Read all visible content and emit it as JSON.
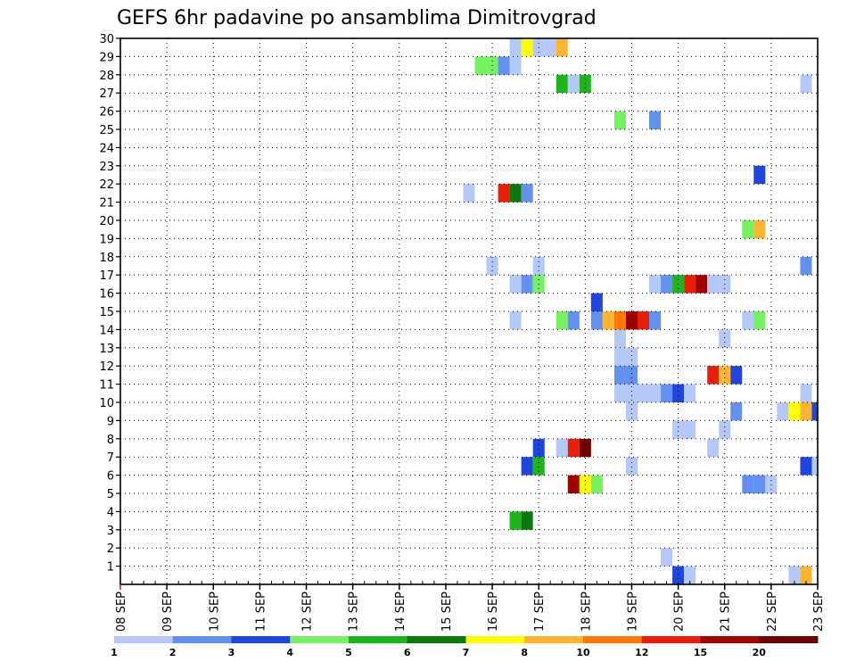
{
  "chart_data": {
    "type": "heatmap",
    "title": "GEFS 6hr padavine po ansamblima Dimitrovgrad",
    "y_ticks": [
      "1",
      "2",
      "3",
      "4",
      "5",
      "6",
      "7",
      "8",
      "9",
      "10",
      "11",
      "12",
      "13",
      "14",
      "15",
      "16",
      "17",
      "18",
      "19",
      "20",
      "21",
      "22",
      "23",
      "24",
      "25",
      "26",
      "27",
      "28",
      "29",
      "30"
    ],
    "x_tick_labels": [
      "08 SEP",
      "09 SEP",
      "10 SEP",
      "11 SEP",
      "12 SEP",
      "13 SEP",
      "14 SEP",
      "15 SEP",
      "16 SEP",
      "17 SEP",
      "18 SEP",
      "19 SEP",
      "20 SEP",
      "21 SEP",
      "22 SEP",
      "23 SEP"
    ],
    "x_range": [
      0,
      60
    ],
    "y_range": [
      0,
      30
    ],
    "grid": true,
    "legend": {
      "position": "bottom",
      "colors": [
        "#b4c8fa",
        "#6490f0",
        "#1e46dc",
        "#78f064",
        "#1eb41e",
        "#0a780a",
        "#ffff00",
        "#ffb432",
        "#ff7800",
        "#e61e0a",
        "#a00000",
        "#6e0000"
      ],
      "labels": [
        "1",
        "2",
        "3",
        "4",
        "5",
        "6",
        "7",
        "8",
        "10",
        "12",
        "15",
        "20"
      ]
    },
    "cells": [
      [
        34,
        29,
        0
      ],
      [
        35,
        29,
        6
      ],
      [
        36,
        29,
        0
      ],
      [
        37,
        29,
        0
      ],
      [
        38,
        29,
        7
      ],
      [
        31,
        28,
        3
      ],
      [
        32,
        28,
        3
      ],
      [
        33,
        28,
        1
      ],
      [
        34,
        28,
        0
      ],
      [
        38,
        27,
        4
      ],
      [
        39,
        27,
        0
      ],
      [
        40,
        27,
        4
      ],
      [
        59,
        27,
        0
      ],
      [
        43,
        25,
        3
      ],
      [
        46,
        25,
        1
      ],
      [
        55,
        22,
        2
      ],
      [
        30,
        21,
        0
      ],
      [
        33,
        21,
        9
      ],
      [
        34,
        21,
        5
      ],
      [
        35,
        21,
        1
      ],
      [
        54,
        19,
        3
      ],
      [
        55,
        19,
        7
      ],
      [
        32,
        17,
        0
      ],
      [
        36,
        17,
        0
      ],
      [
        59,
        17,
        1
      ],
      [
        34,
        16,
        0
      ],
      [
        35,
        16,
        1
      ],
      [
        36,
        16,
        3
      ],
      [
        46,
        16,
        0
      ],
      [
        47,
        16,
        1
      ],
      [
        48,
        16,
        4
      ],
      [
        49,
        16,
        9
      ],
      [
        50,
        16,
        10
      ],
      [
        51,
        16,
        0
      ],
      [
        52,
        16,
        0
      ],
      [
        41,
        15,
        2
      ],
      [
        34,
        14,
        0
      ],
      [
        38,
        14,
        3
      ],
      [
        39,
        14,
        1
      ],
      [
        41,
        14,
        1
      ],
      [
        42,
        14,
        7
      ],
      [
        43,
        14,
        8
      ],
      [
        44,
        14,
        10
      ],
      [
        45,
        14,
        9
      ],
      [
        46,
        14,
        1
      ],
      [
        54,
        14,
        0
      ],
      [
        55,
        14,
        3
      ],
      [
        43,
        13,
        0
      ],
      [
        52,
        13,
        0
      ],
      [
        43,
        12,
        0
      ],
      [
        44,
        12,
        0
      ],
      [
        43,
        11,
        1
      ],
      [
        44,
        11,
        1
      ],
      [
        51,
        11,
        9
      ],
      [
        52,
        11,
        7
      ],
      [
        53,
        11,
        2
      ],
      [
        43,
        10,
        0
      ],
      [
        44,
        10,
        0
      ],
      [
        45,
        10,
        0
      ],
      [
        46,
        10,
        0
      ],
      [
        47,
        10,
        1
      ],
      [
        48,
        10,
        2
      ],
      [
        49,
        10,
        0
      ],
      [
        59,
        10,
        0
      ],
      [
        44,
        9,
        0
      ],
      [
        53,
        9,
        1
      ],
      [
        57,
        9,
        0
      ],
      [
        58,
        9,
        6
      ],
      [
        59,
        9,
        7
      ],
      [
        60,
        9,
        2
      ],
      [
        48,
        8,
        0
      ],
      [
        49,
        8,
        0
      ],
      [
        52,
        8,
        0
      ],
      [
        36,
        7,
        2
      ],
      [
        38,
        7,
        0
      ],
      [
        39,
        7,
        9
      ],
      [
        40,
        7,
        11
      ],
      [
        51,
        7,
        0
      ],
      [
        35,
        6,
        2
      ],
      [
        36,
        6,
        4
      ],
      [
        44,
        6,
        0
      ],
      [
        59,
        6,
        2
      ],
      [
        60,
        6,
        0
      ],
      [
        39,
        5,
        10
      ],
      [
        40,
        5,
        6
      ],
      [
        41,
        5,
        3
      ],
      [
        54,
        5,
        1
      ],
      [
        55,
        5,
        1
      ],
      [
        56,
        5,
        0
      ],
      [
        34,
        3,
        4
      ],
      [
        35,
        3,
        5
      ],
      [
        47,
        1,
        0
      ],
      [
        48,
        0,
        2
      ],
      [
        49,
        0,
        0
      ],
      [
        58,
        0,
        0
      ],
      [
        59,
        0,
        7
      ]
    ]
  }
}
